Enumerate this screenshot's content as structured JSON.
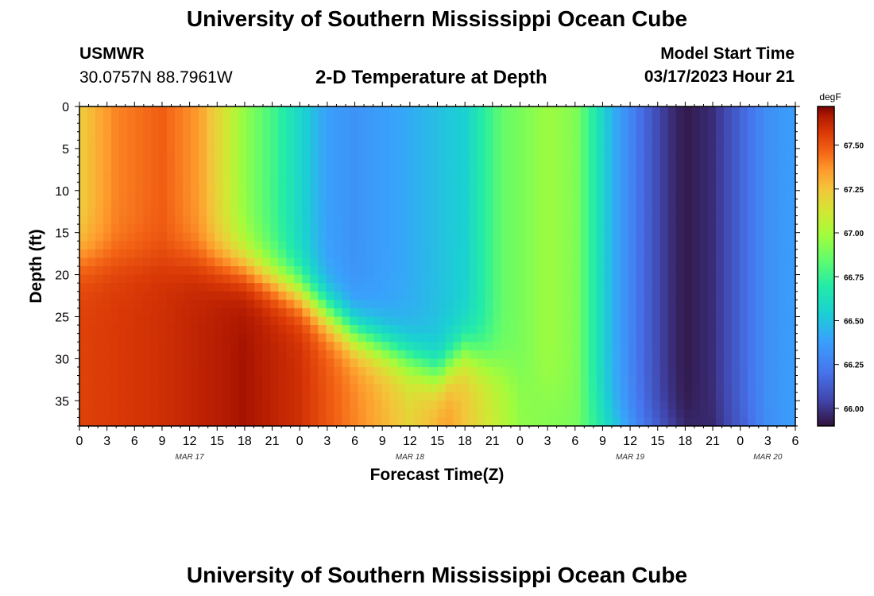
{
  "header": {
    "title": "University of Southern Mississippi Ocean Cube",
    "station": "USMWR",
    "coordinates": "30.0757N  88.7961W",
    "plot_title": "2-D Temperature at Depth",
    "model_start_label": "Model Start Time",
    "model_start_value": "03/17/2023 Hour 21"
  },
  "footer": {
    "title": "University of Southern Mississippi Ocean Cube"
  },
  "chart_data": {
    "type": "heatmap",
    "title": "2-D Temperature at Depth",
    "xlabel": "Forecast Time(Z)",
    "ylabel": "Depth (ft)",
    "x_ticks": [
      "0",
      "3",
      "6",
      "9",
      "12",
      "15",
      "18",
      "21",
      "0",
      "3",
      "6",
      "9",
      "12",
      "15",
      "18",
      "21",
      "0",
      "3",
      "6",
      "9",
      "12",
      "15",
      "18",
      "21",
      "0",
      "3",
      "6"
    ],
    "x_range_hours": [
      0,
      78
    ],
    "date_labels": [
      {
        "label": "MAR 17",
        "hour": 12
      },
      {
        "label": "MAR 18",
        "hour": 36
      },
      {
        "label": "MAR 19",
        "hour": 60
      },
      {
        "label": "MAR 20",
        "hour": 75
      }
    ],
    "y_ticks": [
      0,
      5,
      10,
      15,
      20,
      25,
      30,
      35
    ],
    "ylim": [
      38,
      0
    ],
    "colorbar": {
      "unit": "degF",
      "min": 65.9,
      "max": 67.72,
      "ticks": [
        "67.50",
        "67.25",
        "67.00",
        "66.75",
        "66.50",
        "66.25",
        "66.00"
      ],
      "tick_values": [
        67.5,
        67.25,
        67.0,
        66.75,
        66.5,
        66.25,
        66.0
      ]
    },
    "surface_profile": [
      {
        "hour": 0,
        "temp": 67.22
      },
      {
        "hour": 4,
        "temp": 67.4
      },
      {
        "hour": 9,
        "temp": 67.48
      },
      {
        "hour": 13,
        "temp": 67.35
      },
      {
        "hour": 16,
        "temp": 67.12
      },
      {
        "hour": 18,
        "temp": 66.95
      },
      {
        "hour": 21,
        "temp": 66.78
      },
      {
        "hour": 24,
        "temp": 66.58
      },
      {
        "hour": 27,
        "temp": 66.38
      },
      {
        "hour": 30,
        "temp": 66.33
      },
      {
        "hour": 36,
        "temp": 66.42
      },
      {
        "hour": 42,
        "temp": 66.55
      },
      {
        "hour": 44,
        "temp": 66.7
      },
      {
        "hour": 46,
        "temp": 66.85
      },
      {
        "hour": 49,
        "temp": 66.92
      },
      {
        "hour": 51,
        "temp": 66.98
      },
      {
        "hour": 54,
        "temp": 66.92
      },
      {
        "hour": 56,
        "temp": 66.7
      },
      {
        "hour": 58,
        "temp": 66.45
      },
      {
        "hour": 61,
        "temp": 66.2
      },
      {
        "hour": 64,
        "temp": 66.0
      },
      {
        "hour": 66,
        "temp": 65.92
      },
      {
        "hour": 69,
        "temp": 65.98
      },
      {
        "hour": 72,
        "temp": 66.15
      },
      {
        "hour": 75,
        "temp": 66.32
      },
      {
        "hour": 78,
        "temp": 66.38
      }
    ],
    "bottom_profile": [
      {
        "hour": 0,
        "temp": 67.55
      },
      {
        "hour": 9,
        "temp": 67.6
      },
      {
        "hour": 18,
        "temp": 67.68
      },
      {
        "hour": 24,
        "temp": 67.6
      },
      {
        "hour": 30,
        "temp": 67.4
      },
      {
        "hour": 36,
        "temp": 67.2
      },
      {
        "hour": 40,
        "temp": 67.35
      },
      {
        "hour": 44,
        "temp": 67.15
      },
      {
        "hour": 48,
        "temp": 66.95
      },
      {
        "hour": 54,
        "temp": 66.9
      },
      {
        "hour": 58,
        "temp": 66.6
      },
      {
        "hour": 62,
        "temp": 66.25
      },
      {
        "hour": 66,
        "temp": 66.0
      },
      {
        "hour": 69,
        "temp": 65.95
      },
      {
        "hour": 72,
        "temp": 66.1
      },
      {
        "hour": 75,
        "temp": 66.3
      },
      {
        "hour": 78,
        "temp": 66.38
      }
    ],
    "mixed_layer_depth_ft": [
      {
        "hour": 0,
        "depth": 18
      },
      {
        "hour": 12,
        "depth": 18
      },
      {
        "hour": 18,
        "depth": 19
      },
      {
        "hour": 24,
        "depth": 22
      },
      {
        "hour": 30,
        "depth": 27
      },
      {
        "hour": 36,
        "depth": 30
      },
      {
        "hour": 39,
        "depth": 32
      },
      {
        "hour": 42,
        "depth": 29
      },
      {
        "hour": 48,
        "depth": 32
      },
      {
        "hour": 54,
        "depth": 35
      },
      {
        "hour": 60,
        "depth": 38
      },
      {
        "hour": 78,
        "depth": 38
      }
    ]
  }
}
